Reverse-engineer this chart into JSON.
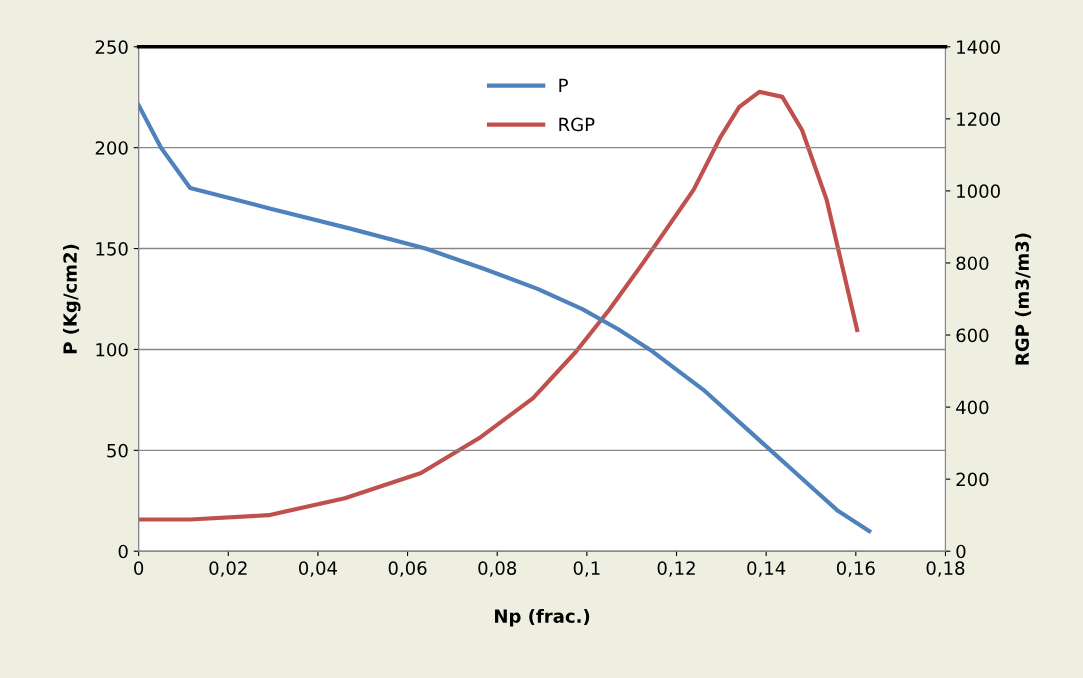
{
  "chart_data": {
    "type": "line",
    "xlabel": "Np (frac.)",
    "ylabel": "P (Kg/cm2)",
    "y2label": "RGP (m3/m3)",
    "xlim": [
      0,
      0.18
    ],
    "xticks": [
      0,
      {
        "value": 0.02,
        "label": "0,02"
      },
      {
        "value": 0.04,
        "label": "0,04"
      },
      {
        "value": 0.06,
        "label": "0,06"
      },
      {
        "value": 0.08,
        "label": "0,08"
      },
      {
        "value": 0.1,
        "label": "0,1"
      },
      {
        "value": 0.12,
        "label": "0,12"
      },
      {
        "value": 0.14,
        "label": "0,14"
      },
      {
        "value": 0.16,
        "label": "0,16"
      },
      {
        "value": 0.18,
        "label": "0,18"
      }
    ],
    "ylim": [
      0,
      250
    ],
    "yticks": [
      0,
      50,
      100,
      150,
      200,
      250
    ],
    "y2lim": [
      0,
      1400
    ],
    "y2ticks": [
      0,
      200,
      400,
      600,
      800,
      1000,
      1200,
      1400
    ],
    "grid": "y",
    "legend": "top",
    "marker": "none",
    "line_style": "solid",
    "series": [
      {
        "name": "P",
        "color": "#4f81bd",
        "x": [
          0,
          0.005,
          0.0115,
          0.029,
          0.047,
          0.064,
          0.077,
          0.089,
          0.099,
          0.107,
          0.114,
          0.12,
          0.126,
          0.131,
          0.136,
          0.141,
          0.146,
          0.151,
          0.156,
          0.163
        ],
        "values": [
          221,
          200,
          180,
          170,
          160,
          150,
          140,
          130,
          120,
          110,
          100,
          90,
          80,
          70,
          60,
          50,
          40,
          30,
          20,
          10
        ]
      },
      {
        "name": "RGP",
        "color": "#c0504d",
        "axis": "y2",
        "x": [
          0,
          0.0115,
          0.029,
          0.046,
          0.063,
          0.076,
          0.088,
          0.0975,
          0.105,
          0.1127,
          0.1238,
          0.1297,
          0.134,
          0.1385,
          0.1436,
          0.148,
          0.1535,
          0.1603
        ],
        "values": [
          88,
          88,
          100,
          147,
          217,
          314,
          425,
          553,
          670,
          803,
          1003,
          1147,
          1233,
          1275,
          1261,
          1169,
          975,
          614
        ]
      }
    ]
  }
}
